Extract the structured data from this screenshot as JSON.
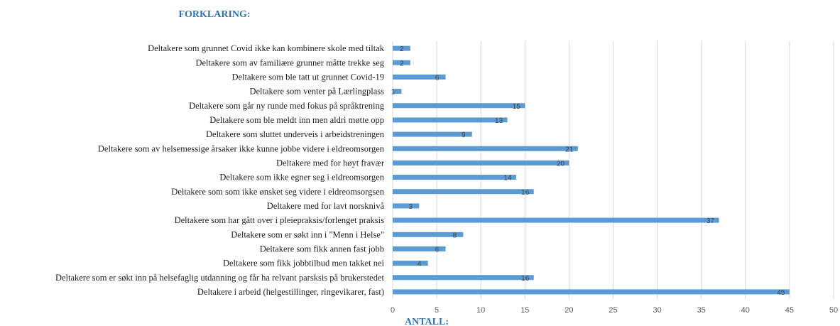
{
  "header": {
    "title": "FORKLARING:"
  },
  "chart_data": {
    "type": "bar",
    "orientation": "horizontal",
    "title": "FORKLARING:",
    "xlabel": "ANTALL:",
    "ylabel": "",
    "xlim": [
      0,
      50
    ],
    "xticks": [
      0,
      5,
      10,
      15,
      20,
      25,
      30,
      35,
      40,
      45,
      50
    ],
    "grid": true,
    "bar_color": "#5b9bd5",
    "categories": [
      "Deltakere som grunnet Covid ikke kan kombinere skole med tiltak",
      "Deltakere som av familiære grunner måtte trekke seg",
      "Deltakere som ble tatt ut grunnet Covid-19",
      "Deltakere som venter på Lærlingplass",
      "Deltakere som går ny runde med fokus på språktrening",
      "Deltakere som ble meldt inn men aldri møtte opp",
      "Deltakere som sluttet underveis i arbeidstreningen",
      "Deltakere som av helsemessige årsaker ikke kunne jobbe videre i eldreomsorgen",
      "Deltakere med for høyt fravær",
      "Deltakere som ikke egner seg i eldreomsorgen",
      "Deltakere som som ikke ønsket seg videre i eldreomsorgsen",
      "Deltakere med for lavt norsknivå",
      "Deltakere som har gått over i pleiepraksis/forlenget praksis",
      "Deltakere som er søkt inn i \"Menn i Helse\"",
      "Deltakere som fikk annen fast jobb",
      "Deltakere som fikk jobbtilbud men takket nei",
      "Deltakere som er søkt inn på helsefaglig utdanning og får ha relvant parsksis på brukerstedet",
      "Deltakere i arbeid (helgestillinger, ringevikarer, fast)"
    ],
    "values": [
      2,
      2,
      6,
      1,
      15,
      13,
      9,
      21,
      20,
      14,
      16,
      3,
      37,
      8,
      6,
      4,
      16,
      45
    ]
  }
}
